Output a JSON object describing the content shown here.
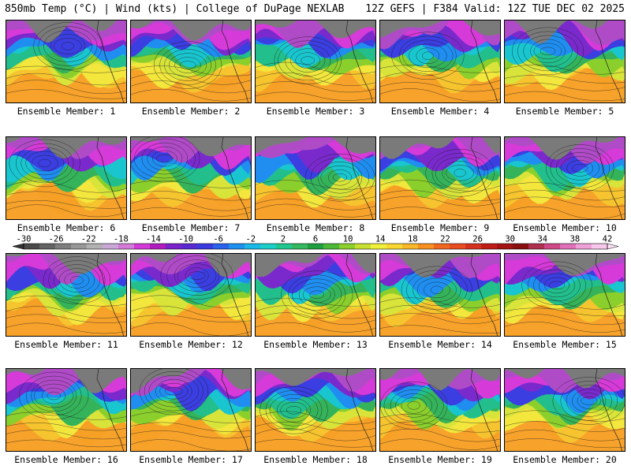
{
  "header": {
    "left": "850mb Temp (°C) | Wind (kts) | College of DuPage NEXLAB",
    "right": "12Z GEFS | F384 Valid: 12Z TUE DEC 02 2025"
  },
  "panels": [
    {
      "label": "Ensemble Member: 1"
    },
    {
      "label": "Ensemble Member: 2"
    },
    {
      "label": "Ensemble Member: 3"
    },
    {
      "label": "Ensemble Member: 4"
    },
    {
      "label": "Ensemble Member: 5"
    },
    {
      "label": "Ensemble Member: 6"
    },
    {
      "label": "Ensemble Member: 7"
    },
    {
      "label": "Ensemble Member: 8"
    },
    {
      "label": "Ensemble Member: 9"
    },
    {
      "label": "Ensemble Member: 10"
    },
    {
      "label": "Ensemble Member: 11"
    },
    {
      "label": "Ensemble Member: 12"
    },
    {
      "label": "Ensemble Member: 13"
    },
    {
      "label": "Ensemble Member: 14"
    },
    {
      "label": "Ensemble Member: 15"
    },
    {
      "label": "Ensemble Member: 16"
    },
    {
      "label": "Ensemble Member: 17"
    },
    {
      "label": "Ensemble Member: 18"
    },
    {
      "label": "Ensemble Member: 19"
    },
    {
      "label": "Ensemble Member: 20"
    }
  ],
  "colorbar": {
    "tick_labels": [
      "-30",
      "-26",
      "-22",
      "-18",
      "-14",
      "-10",
      "-6",
      "-2",
      "2",
      "6",
      "10",
      "14",
      "18",
      "22",
      "26",
      "30",
      "34",
      "38",
      "42"
    ],
    "colors": [
      "#4a4a4a",
      "#646464",
      "#7e7e7e",
      "#989898",
      "#b2b2b2",
      "#c9a8d8",
      "#d47ad8",
      "#d43ad8",
      "#b01cc0",
      "#7a22cc",
      "#5a2ad2",
      "#3a3ae0",
      "#2a62ec",
      "#1e90f0",
      "#18b8e8",
      "#18d0c8",
      "#20c890",
      "#34b860",
      "#1ea040",
      "#4cb838",
      "#8cd02c",
      "#c8e030",
      "#f0f038",
      "#f8d830",
      "#f8b828",
      "#f89020",
      "#f06820",
      "#e84c20",
      "#d83020",
      "#c01c18",
      "#a41414",
      "#8a1010",
      "#b03050",
      "#d04888",
      "#e070b8",
      "#f0a0d8",
      "#f8c8ec"
    ]
  }
}
